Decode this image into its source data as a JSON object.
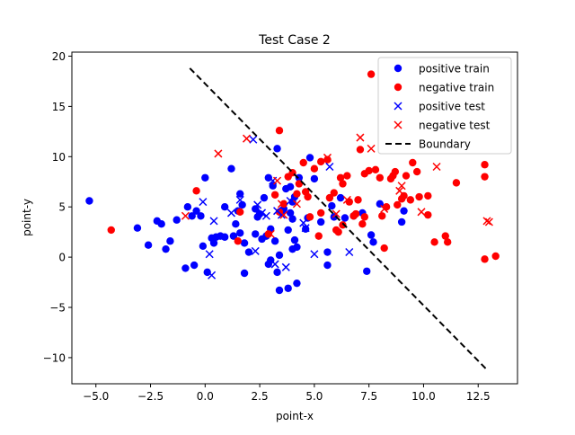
{
  "chart_data": {
    "type": "scatter",
    "title": "Test Case 2",
    "xlabel": "point-x",
    "ylabel": "point-y",
    "xlim": [
      -6.1,
      14.3
    ],
    "ylim": [
      -12.6,
      20.4
    ],
    "xticks": [
      -5.0,
      -2.5,
      0.0,
      2.5,
      5.0,
      7.5,
      10.0,
      12.5
    ],
    "yticks": [
      -10,
      -5,
      0,
      5,
      10,
      15,
      20
    ],
    "xtick_labels": [
      "−5.0",
      "−2.5",
      "0.0",
      "2.5",
      "5.0",
      "7.5",
      "10.0",
      "12.5"
    ],
    "ytick_labels": [
      "−10",
      "−5",
      "0",
      "5",
      "10",
      "15",
      "20"
    ],
    "grid": false,
    "legend_position": "top-right",
    "series": [
      {
        "name": "positive train",
        "marker": "circle",
        "color": "#0000ff",
        "points": [
          [
            -5.3,
            5.6
          ],
          [
            -3.1,
            2.9
          ],
          [
            -2.6,
            1.2
          ],
          [
            -2.2,
            3.6
          ],
          [
            -2.0,
            3.3
          ],
          [
            -1.8,
            0.8
          ],
          [
            -1.6,
            1.6
          ],
          [
            -1.3,
            3.7
          ],
          [
            -0.9,
            -1.1
          ],
          [
            -0.8,
            5.0
          ],
          [
            -0.6,
            4.1
          ],
          [
            -0.5,
            -0.8
          ],
          [
            -0.4,
            4.6
          ],
          [
            -0.2,
            4.1
          ],
          [
            -0.1,
            1.1
          ],
          [
            0.0,
            7.9
          ],
          [
            0.1,
            -1.5
          ],
          [
            0.3,
            1.9
          ],
          [
            0.4,
            1.4
          ],
          [
            0.5,
            2.0
          ],
          [
            0.7,
            2.1
          ],
          [
            0.9,
            5.0
          ],
          [
            0.9,
            2.0
          ],
          [
            1.2,
            8.8
          ],
          [
            1.3,
            2.1
          ],
          [
            1.4,
            3.3
          ],
          [
            1.5,
            4.6
          ],
          [
            1.6,
            2.4
          ],
          [
            1.6,
            6.3
          ],
          [
            1.7,
            5.2
          ],
          [
            1.8,
            1.4
          ],
          [
            1.8,
            -1.6
          ],
          [
            2.0,
            0.5
          ],
          [
            2.3,
            2.3
          ],
          [
            2.3,
            4.8
          ],
          [
            2.4,
            4.0
          ],
          [
            2.5,
            4.3
          ],
          [
            2.6,
            1.8
          ],
          [
            2.7,
            5.9
          ],
          [
            2.8,
            2.1
          ],
          [
            2.9,
            7.9
          ],
          [
            2.9,
            -0.7
          ],
          [
            3.0,
            -0.3
          ],
          [
            3.0,
            2.8
          ],
          [
            3.1,
            7.1
          ],
          [
            3.2,
            1.6
          ],
          [
            3.3,
            10.8
          ],
          [
            3.3,
            -1.5
          ],
          [
            3.4,
            -3.3
          ],
          [
            3.4,
            0.2
          ],
          [
            3.5,
            4.4
          ],
          [
            3.6,
            4.8
          ],
          [
            3.7,
            6.8
          ],
          [
            3.8,
            2.7
          ],
          [
            3.8,
            -3.1
          ],
          [
            3.9,
            4.4
          ],
          [
            3.9,
            7.0
          ],
          [
            4.0,
            3.8
          ],
          [
            4.0,
            5.5
          ],
          [
            4.0,
            0.8
          ],
          [
            4.1,
            1.7
          ],
          [
            4.1,
            6.0
          ],
          [
            4.2,
            1.0
          ],
          [
            4.2,
            -2.6
          ],
          [
            4.3,
            7.9
          ],
          [
            4.6,
            2.8
          ],
          [
            4.7,
            3.9
          ],
          [
            4.8,
            9.9
          ],
          [
            5.0,
            7.8
          ],
          [
            5.3,
            3.5
          ],
          [
            5.6,
            -0.8
          ],
          [
            5.6,
            0.5
          ],
          [
            5.8,
            5.1
          ],
          [
            5.9,
            4.0
          ],
          [
            6.2,
            5.9
          ],
          [
            6.4,
            3.9
          ],
          [
            6.8,
            4.1
          ],
          [
            7.2,
            4.4
          ],
          [
            7.4,
            -1.4
          ],
          [
            7.6,
            2.2
          ],
          [
            7.7,
            1.5
          ],
          [
            8.0,
            5.3
          ],
          [
            9.0,
            3.5
          ],
          [
            9.1,
            4.6
          ]
        ]
      },
      {
        "name": "negative train",
        "marker": "circle",
        "color": "#ff0000",
        "points": [
          [
            -4.3,
            2.7
          ],
          [
            -0.4,
            6.6
          ],
          [
            1.5,
            1.6
          ],
          [
            1.6,
            4.5
          ],
          [
            2.9,
            2.3
          ],
          [
            3.2,
            6.2
          ],
          [
            3.4,
            4.5
          ],
          [
            3.4,
            12.6
          ],
          [
            3.6,
            5.3
          ],
          [
            3.8,
            8.0
          ],
          [
            4.0,
            8.4
          ],
          [
            4.2,
            6.3
          ],
          [
            4.3,
            7.3
          ],
          [
            4.5,
            9.4
          ],
          [
            4.6,
            6.5
          ],
          [
            4.7,
            6.0
          ],
          [
            4.8,
            4.0
          ],
          [
            5.0,
            8.8
          ],
          [
            5.2,
            2.1
          ],
          [
            5.3,
            9.5
          ],
          [
            5.3,
            4.4
          ],
          [
            5.6,
            9.7
          ],
          [
            5.7,
            5.9
          ],
          [
            5.9,
            6.4
          ],
          [
            6.0,
            2.7
          ],
          [
            6.2,
            7.9
          ],
          [
            6.3,
            3.2
          ],
          [
            6.3,
            7.3
          ],
          [
            6.5,
            8.1
          ],
          [
            6.6,
            5.5
          ],
          [
            6.8,
            4.1
          ],
          [
            6.9,
            4.3
          ],
          [
            7.0,
            5.7
          ],
          [
            7.1,
            10.7
          ],
          [
            7.3,
            4.0
          ],
          [
            7.3,
            8.3
          ],
          [
            7.5,
            8.6
          ],
          [
            7.6,
            18.2
          ],
          [
            7.8,
            8.7
          ],
          [
            8.0,
            7.9
          ],
          [
            8.1,
            4.1
          ],
          [
            8.2,
            0.9
          ],
          [
            8.3,
            5.0
          ],
          [
            8.5,
            7.8
          ],
          [
            8.6,
            8.1
          ],
          [
            8.7,
            8.5
          ],
          [
            8.8,
            5.2
          ],
          [
            9.0,
            5.8
          ],
          [
            9.1,
            6.1
          ],
          [
            9.2,
            8.1
          ],
          [
            9.4,
            5.7
          ],
          [
            9.5,
            9.4
          ],
          [
            9.7,
            8.5
          ],
          [
            9.8,
            6.0
          ],
          [
            10.2,
            6.1
          ],
          [
            10.2,
            4.2
          ],
          [
            10.5,
            1.5
          ],
          [
            11.0,
            2.1
          ],
          [
            11.1,
            1.5
          ],
          [
            11.5,
            7.4
          ],
          [
            12.8,
            9.2
          ],
          [
            12.8,
            8.0
          ],
          [
            12.8,
            -0.2
          ],
          [
            13.3,
            0.1
          ],
          [
            7.2,
            3.3
          ],
          [
            6.1,
            2.5
          ]
        ]
      },
      {
        "name": "positive test",
        "marker": "x",
        "color": "#0000ff",
        "points": [
          [
            -0.1,
            5.5
          ],
          [
            0.2,
            0.3
          ],
          [
            0.3,
            -1.8
          ],
          [
            0.4,
            3.6
          ],
          [
            1.2,
            4.4
          ],
          [
            1.6,
            5.7
          ],
          [
            2.2,
            11.7
          ],
          [
            2.3,
            0.6
          ],
          [
            2.4,
            5.2
          ],
          [
            2.6,
            4.4
          ],
          [
            2.8,
            4.1
          ],
          [
            3.1,
            7.6
          ],
          [
            3.2,
            -0.7
          ],
          [
            3.3,
            4.6
          ],
          [
            3.5,
            4.2
          ],
          [
            3.7,
            -1.0
          ],
          [
            3.9,
            5.6
          ],
          [
            4.5,
            3.4
          ],
          [
            4.6,
            2.9
          ],
          [
            5.0,
            0.3
          ],
          [
            5.7,
            9.0
          ],
          [
            6.6,
            0.5
          ]
        ]
      },
      {
        "name": "negative test",
        "marker": "x",
        "color": "#ff0000",
        "points": [
          [
            -0.9,
            4.1
          ],
          [
            0.6,
            10.3
          ],
          [
            1.9,
            11.8
          ],
          [
            3.0,
            2.3
          ],
          [
            3.3,
            7.6
          ],
          [
            3.5,
            5.3
          ],
          [
            3.6,
            4.2
          ],
          [
            4.2,
            5.3
          ],
          [
            5.6,
            9.9
          ],
          [
            6.0,
            4.3
          ],
          [
            6.5,
            5.7
          ],
          [
            7.1,
            11.9
          ],
          [
            7.6,
            10.8
          ],
          [
            8.2,
            4.8
          ],
          [
            8.9,
            6.6
          ],
          [
            9.0,
            7.1
          ],
          [
            9.9,
            4.5
          ],
          [
            10.6,
            9.0
          ],
          [
            12.9,
            3.6
          ],
          [
            13.0,
            3.5
          ]
        ]
      },
      {
        "name": "Boundary",
        "marker": "dashed-line",
        "color": "#000000",
        "points": [
          [
            -0.7,
            18.8
          ],
          [
            12.9,
            -11.2
          ]
        ]
      }
    ]
  }
}
